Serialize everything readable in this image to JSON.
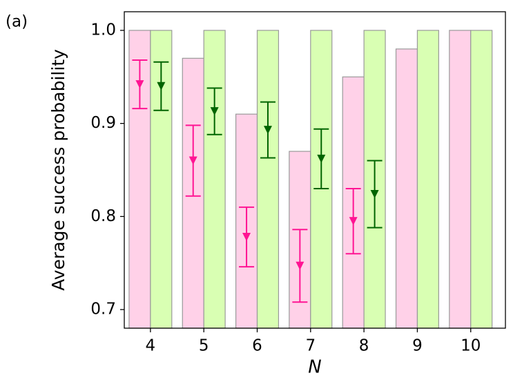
{
  "chart_data": {
    "type": "bar",
    "panel_label": "(a)",
    "xlabel": "N",
    "ylabel": "Average success probability",
    "categories": [
      "4",
      "5",
      "6",
      "7",
      "8",
      "9",
      "10"
    ],
    "series": [
      {
        "color": "#ffd1e8",
        "values": [
          1.0,
          0.97,
          0.91,
          0.87,
          0.95,
          0.98,
          1.0
        ]
      },
      {
        "color": "#d9ffb3",
        "values": [
          1.0,
          1.0,
          1.0,
          1.0,
          1.0,
          1.0,
          1.0
        ]
      }
    ],
    "points": [
      {
        "color": "#ff1493",
        "values": [
          0.942,
          0.86,
          0.778,
          0.747,
          0.795
        ],
        "errors": [
          0.026,
          0.038,
          0.032,
          0.039,
          0.035
        ]
      },
      {
        "color": "#006400",
        "values": [
          0.94,
          0.913,
          0.893,
          0.862,
          0.824
        ],
        "errors": [
          0.026,
          0.025,
          0.03,
          0.032,
          0.036
        ]
      }
    ],
    "ylim": [
      0.68,
      1.02
    ],
    "yticks": [
      0.7,
      0.8,
      0.9,
      {
        "value": 1,
        "label": "1.0"
      }
    ]
  }
}
